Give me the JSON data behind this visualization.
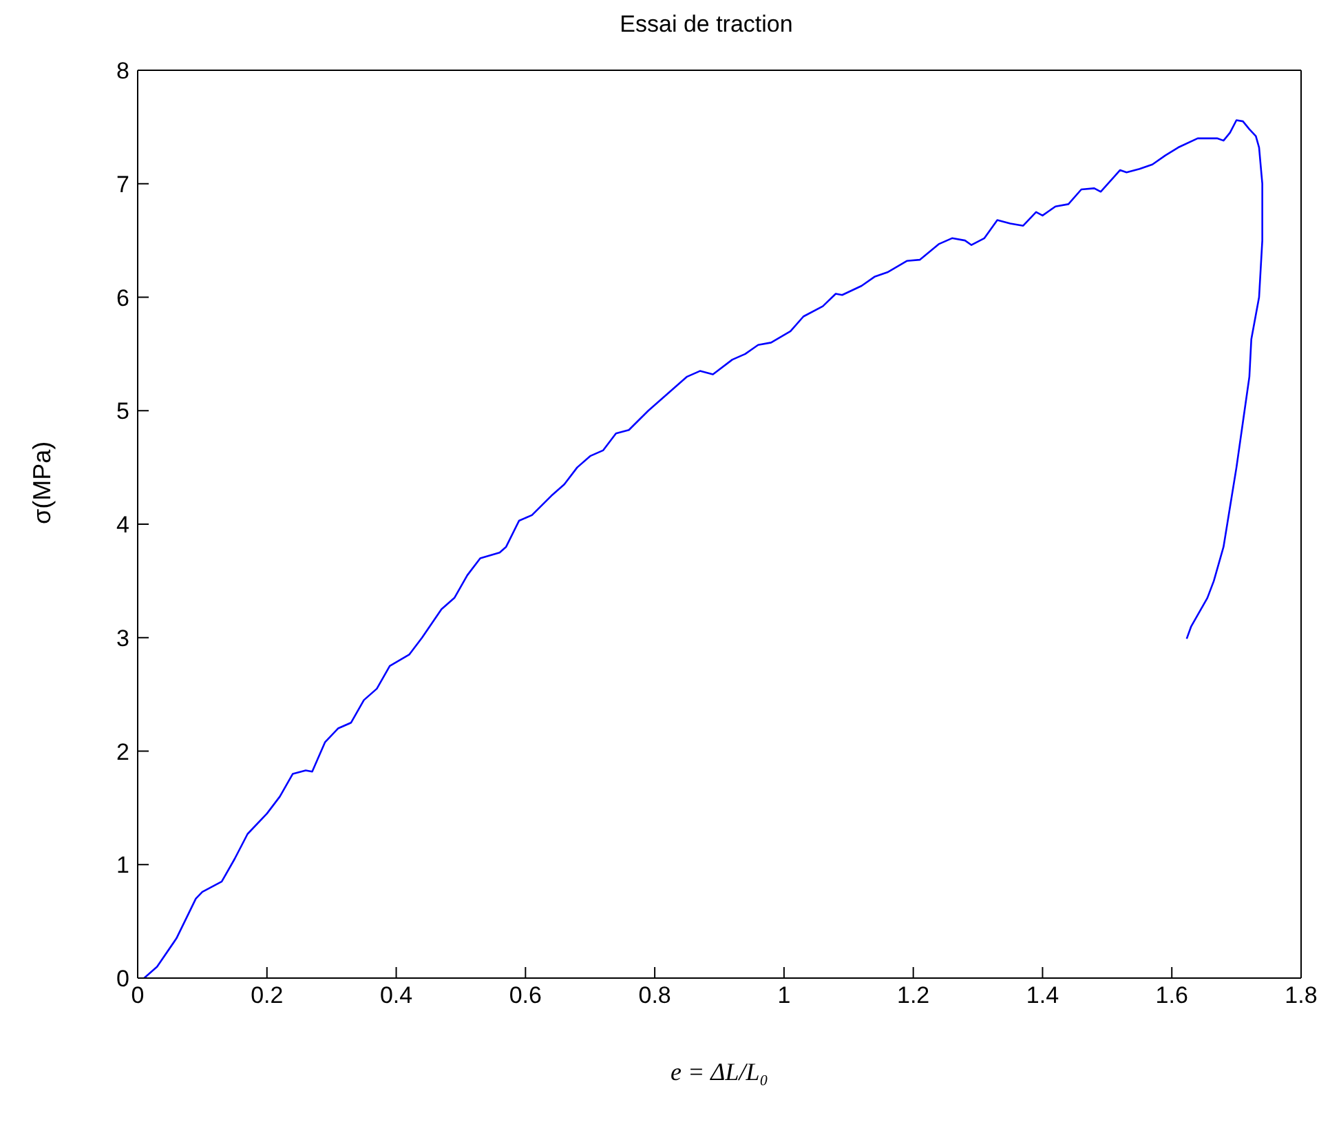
{
  "chart_data": {
    "type": "line",
    "title": "Essai de traction",
    "xlabel": "e = ΔL/L₀",
    "ylabel": "σ(MPa)",
    "xlim": [
      0,
      1.8
    ],
    "xticks": [
      0,
      0.2,
      0.4,
      0.6,
      0.8,
      1,
      1.2,
      1.4,
      1.6,
      1.8
    ],
    "ylim": [
      0,
      8
    ],
    "yticks": [
      0,
      1,
      2,
      3,
      4,
      5,
      6,
      7,
      8
    ],
    "marker": "none",
    "line_style": "solid",
    "series": [
      {
        "color": "#0000ff",
        "x": [
          0.01,
          0.03,
          0.06,
          0.09,
          0.1,
          0.13,
          0.15,
          0.17,
          0.2,
          0.22,
          0.24,
          0.26,
          0.27,
          0.29,
          0.31,
          0.33,
          0.35,
          0.37,
          0.39,
          0.42,
          0.44,
          0.47,
          0.49,
          0.51,
          0.53,
          0.56,
          0.57,
          0.59,
          0.61,
          0.64,
          0.66,
          0.68,
          0.7,
          0.72,
          0.74,
          0.76,
          0.79,
          0.82,
          0.85,
          0.87,
          0.89,
          0.92,
          0.94,
          0.96,
          0.98,
          1.01,
          1.03,
          1.06,
          1.08,
          1.09,
          1.12,
          1.14,
          1.16,
          1.19,
          1.21,
          1.24,
          1.26,
          1.28,
          1.29,
          1.31,
          1.33,
          1.35,
          1.37,
          1.39,
          1.4,
          1.42,
          1.44,
          1.46,
          1.48,
          1.49,
          1.52,
          1.53,
          1.55,
          1.57,
          1.59,
          1.61,
          1.64,
          1.67,
          1.68,
          1.69,
          1.7,
          1.71,
          1.72,
          1.73,
          1.735,
          1.74,
          1.74,
          1.735,
          1.723,
          1.72,
          1.71,
          1.7,
          1.69,
          1.68,
          1.665,
          1.655,
          1.63,
          1.623
        ],
        "values": [
          0,
          0.1,
          0.35,
          0.7,
          0.76,
          0.85,
          1.05,
          1.27,
          1.45,
          1.6,
          1.8,
          1.83,
          1.82,
          2.08,
          2.2,
          2.25,
          2.45,
          2.55,
          2.75,
          2.85,
          3,
          3.25,
          3.35,
          3.55,
          3.7,
          3.75,
          3.8,
          4.03,
          4.08,
          4.25,
          4.35,
          4.5,
          4.6,
          4.65,
          4.8,
          4.83,
          5,
          5.15,
          5.3,
          5.35,
          5.32,
          5.45,
          5.5,
          5.58,
          5.6,
          5.7,
          5.83,
          5.92,
          6.03,
          6.02,
          6.1,
          6.18,
          6.22,
          6.32,
          6.33,
          6.47,
          6.52,
          6.5,
          6.46,
          6.52,
          6.68,
          6.65,
          6.63,
          6.75,
          6.72,
          6.8,
          6.82,
          6.95,
          6.96,
          6.93,
          7.12,
          7.1,
          7.13,
          7.17,
          7.25,
          7.32,
          7.4,
          7.4,
          7.38,
          7.45,
          7.56,
          7.55,
          7.48,
          7.42,
          7.32,
          7,
          6.5,
          6,
          5.63,
          5.3,
          4.9,
          4.5,
          4.15,
          3.8,
          3.5,
          3.35,
          3.1,
          2.99
        ]
      }
    ]
  }
}
